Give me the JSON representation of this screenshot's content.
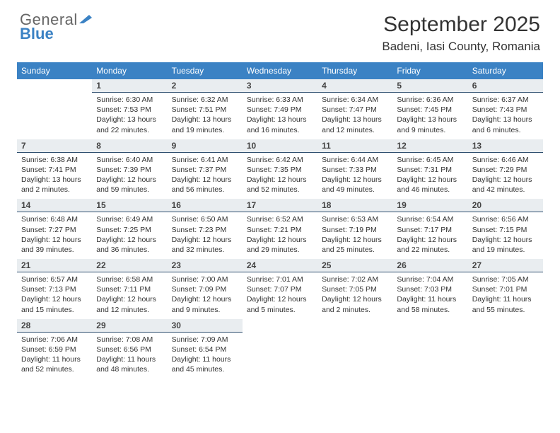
{
  "brand": {
    "general": "General",
    "blue": "Blue"
  },
  "title": "September 2025",
  "location": "Badeni, Iasi County, Romania",
  "colors": {
    "header_bg": "#3b82c4",
    "header_text": "#ffffff",
    "daybar_bg": "#e9edf0",
    "daybar_border": "#2f4f6f",
    "body_text": "#333333",
    "page_bg": "#ffffff"
  },
  "weekdays": [
    "Sunday",
    "Monday",
    "Tuesday",
    "Wednesday",
    "Thursday",
    "Friday",
    "Saturday"
  ],
  "layout": {
    "first_weekday_index": 1,
    "days_in_month": 30
  },
  "days": {
    "1": {
      "sunrise": "6:30 AM",
      "sunset": "7:53 PM",
      "daylight": "13 hours and 22 minutes."
    },
    "2": {
      "sunrise": "6:32 AM",
      "sunset": "7:51 PM",
      "daylight": "13 hours and 19 minutes."
    },
    "3": {
      "sunrise": "6:33 AM",
      "sunset": "7:49 PM",
      "daylight": "13 hours and 16 minutes."
    },
    "4": {
      "sunrise": "6:34 AM",
      "sunset": "7:47 PM",
      "daylight": "13 hours and 12 minutes."
    },
    "5": {
      "sunrise": "6:36 AM",
      "sunset": "7:45 PM",
      "daylight": "13 hours and 9 minutes."
    },
    "6": {
      "sunrise": "6:37 AM",
      "sunset": "7:43 PM",
      "daylight": "13 hours and 6 minutes."
    },
    "7": {
      "sunrise": "6:38 AM",
      "sunset": "7:41 PM",
      "daylight": "13 hours and 2 minutes."
    },
    "8": {
      "sunrise": "6:40 AM",
      "sunset": "7:39 PM",
      "daylight": "12 hours and 59 minutes."
    },
    "9": {
      "sunrise": "6:41 AM",
      "sunset": "7:37 PM",
      "daylight": "12 hours and 56 minutes."
    },
    "10": {
      "sunrise": "6:42 AM",
      "sunset": "7:35 PM",
      "daylight": "12 hours and 52 minutes."
    },
    "11": {
      "sunrise": "6:44 AM",
      "sunset": "7:33 PM",
      "daylight": "12 hours and 49 minutes."
    },
    "12": {
      "sunrise": "6:45 AM",
      "sunset": "7:31 PM",
      "daylight": "12 hours and 46 minutes."
    },
    "13": {
      "sunrise": "6:46 AM",
      "sunset": "7:29 PM",
      "daylight": "12 hours and 42 minutes."
    },
    "14": {
      "sunrise": "6:48 AM",
      "sunset": "7:27 PM",
      "daylight": "12 hours and 39 minutes."
    },
    "15": {
      "sunrise": "6:49 AM",
      "sunset": "7:25 PM",
      "daylight": "12 hours and 36 minutes."
    },
    "16": {
      "sunrise": "6:50 AM",
      "sunset": "7:23 PM",
      "daylight": "12 hours and 32 minutes."
    },
    "17": {
      "sunrise": "6:52 AM",
      "sunset": "7:21 PM",
      "daylight": "12 hours and 29 minutes."
    },
    "18": {
      "sunrise": "6:53 AM",
      "sunset": "7:19 PM",
      "daylight": "12 hours and 25 minutes."
    },
    "19": {
      "sunrise": "6:54 AM",
      "sunset": "7:17 PM",
      "daylight": "12 hours and 22 minutes."
    },
    "20": {
      "sunrise": "6:56 AM",
      "sunset": "7:15 PM",
      "daylight": "12 hours and 19 minutes."
    },
    "21": {
      "sunrise": "6:57 AM",
      "sunset": "7:13 PM",
      "daylight": "12 hours and 15 minutes."
    },
    "22": {
      "sunrise": "6:58 AM",
      "sunset": "7:11 PM",
      "daylight": "12 hours and 12 minutes."
    },
    "23": {
      "sunrise": "7:00 AM",
      "sunset": "7:09 PM",
      "daylight": "12 hours and 9 minutes."
    },
    "24": {
      "sunrise": "7:01 AM",
      "sunset": "7:07 PM",
      "daylight": "12 hours and 5 minutes."
    },
    "25": {
      "sunrise": "7:02 AM",
      "sunset": "7:05 PM",
      "daylight": "12 hours and 2 minutes."
    },
    "26": {
      "sunrise": "7:04 AM",
      "sunset": "7:03 PM",
      "daylight": "11 hours and 58 minutes."
    },
    "27": {
      "sunrise": "7:05 AM",
      "sunset": "7:01 PM",
      "daylight": "11 hours and 55 minutes."
    },
    "28": {
      "sunrise": "7:06 AM",
      "sunset": "6:59 PM",
      "daylight": "11 hours and 52 minutes."
    },
    "29": {
      "sunrise": "7:08 AM",
      "sunset": "6:56 PM",
      "daylight": "11 hours and 48 minutes."
    },
    "30": {
      "sunrise": "7:09 AM",
      "sunset": "6:54 PM",
      "daylight": "11 hours and 45 minutes."
    }
  },
  "labels": {
    "sunrise": "Sunrise: ",
    "sunset": "Sunset: ",
    "daylight": "Daylight: "
  }
}
